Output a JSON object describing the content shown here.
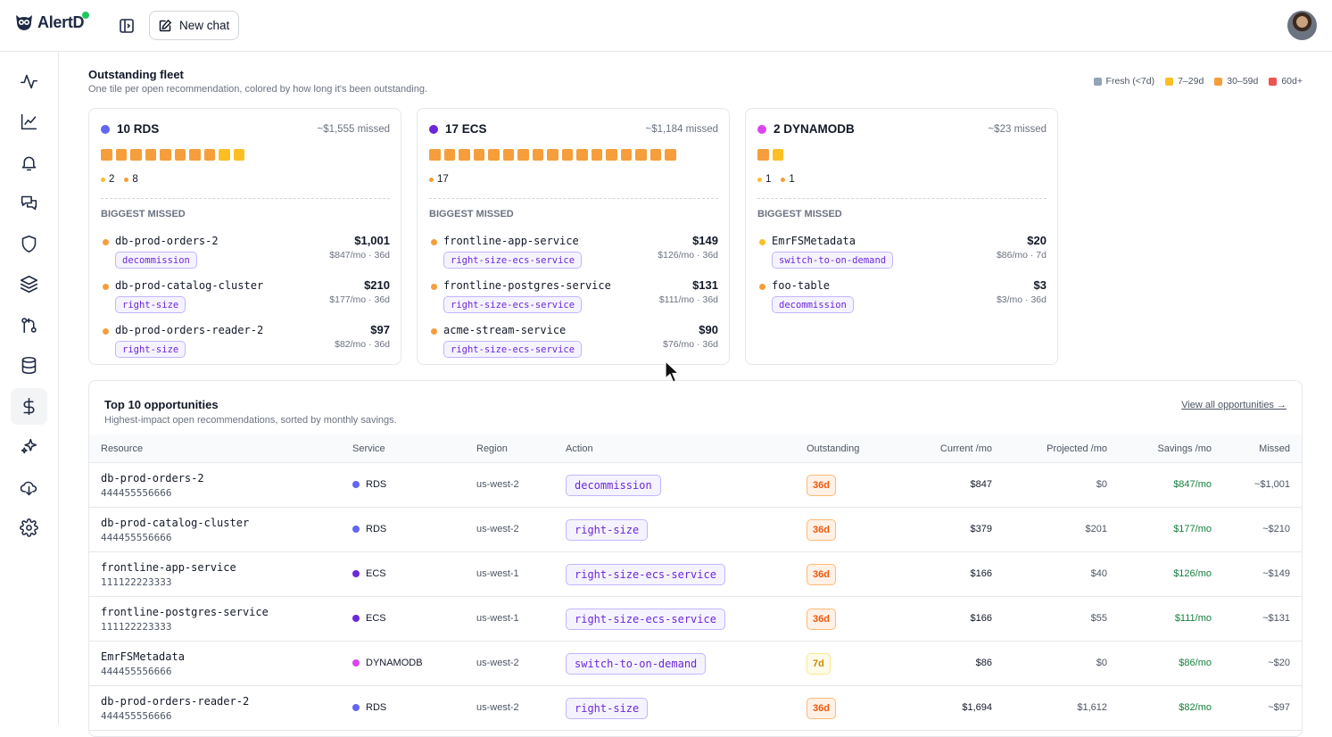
{
  "app": {
    "name": "AlertD",
    "new_chat_label": "New chat"
  },
  "colors": {
    "fresh": "#94a3b8",
    "age_7_29": "#fbbf24",
    "age_30_59": "#f59e3b",
    "age_60_plus": "#ef5350",
    "rds": "#6366f1",
    "ecs": "#6d28d9",
    "dynamodb": "#d946ef"
  },
  "sidebar": {
    "items": [
      {
        "icon": "activity-icon"
      },
      {
        "icon": "chart-icon"
      },
      {
        "icon": "bell-icon"
      },
      {
        "icon": "chat-icon"
      },
      {
        "icon": "shield-icon"
      },
      {
        "icon": "layers-icon"
      },
      {
        "icon": "git-icon"
      },
      {
        "icon": "database-icon"
      },
      {
        "icon": "dollar-icon",
        "active": true
      },
      {
        "icon": "sparkle-icon"
      },
      {
        "icon": "cloud-download-icon"
      },
      {
        "icon": "gear-icon"
      }
    ]
  },
  "fleet": {
    "title": "Outstanding fleet",
    "subtitle": "One tile per open recommendation, colored by how long it's been outstanding.",
    "legend": [
      "Fresh (<7d)",
      "7–29d",
      "30–59d",
      "60d+"
    ],
    "cards": [
      {
        "title": "10 RDS",
        "missed": "~$1,555 missed",
        "tiles": [
          "o",
          "o",
          "o",
          "o",
          "o",
          "o",
          "o",
          "o",
          "y",
          "y"
        ],
        "counts": [
          {
            "color": "y",
            "value": "2"
          },
          {
            "color": "o",
            "value": "8"
          }
        ],
        "biggest_label": "BIGGEST MISSED",
        "items": [
          {
            "name": "db-prod-orders-2",
            "badge": "decommission",
            "amount": "$1,001",
            "sub": "$847/mo · 36d",
            "color": "o"
          },
          {
            "name": "db-prod-catalog-cluster",
            "badge": "right-size",
            "amount": "$210",
            "sub": "$177/mo · 36d",
            "color": "o"
          },
          {
            "name": "db-prod-orders-reader-2",
            "badge": "right-size",
            "amount": "$97",
            "sub": "$82/mo · 36d",
            "color": "o"
          }
        ]
      },
      {
        "title": "17 ECS",
        "missed": "~$1,184 missed",
        "tiles": [
          "o",
          "o",
          "o",
          "o",
          "o",
          "o",
          "o",
          "o",
          "o",
          "o",
          "o",
          "o",
          "o",
          "o",
          "o",
          "o",
          "o"
        ],
        "counts": [
          {
            "color": "o",
            "value": "17"
          }
        ],
        "biggest_label": "BIGGEST MISSED",
        "items": [
          {
            "name": "frontline-app-service",
            "badge": "right-size-ecs-service",
            "amount": "$149",
            "sub": "$126/mo · 36d",
            "color": "o"
          },
          {
            "name": "frontline-postgres-service",
            "badge": "right-size-ecs-service",
            "amount": "$131",
            "sub": "$111/mo · 36d",
            "color": "o"
          },
          {
            "name": "acme-stream-service",
            "badge": "right-size-ecs-service",
            "amount": "$90",
            "sub": "$76/mo · 36d",
            "color": "o"
          }
        ]
      },
      {
        "title": "2 DYNAMODB",
        "missed": "~$23 missed",
        "tiles": [
          "o",
          "y"
        ],
        "counts": [
          {
            "color": "y",
            "value": "1"
          },
          {
            "color": "o",
            "value": "1"
          }
        ],
        "biggest_label": "BIGGEST MISSED",
        "items": [
          {
            "name": "EmrFSMetadata",
            "badge": "switch-to-on-demand",
            "amount": "$20",
            "sub": "$86/mo · 7d",
            "color": "y"
          },
          {
            "name": "foo-table",
            "badge": "decommission",
            "amount": "$3",
            "sub": "$3/mo · 36d",
            "color": "o"
          }
        ]
      }
    ]
  },
  "opportunities": {
    "title": "Top 10 opportunities",
    "subtitle": "Highest-impact open recommendations, sorted by monthly savings.",
    "view_all": "View all opportunities →",
    "columns": [
      "Resource",
      "Service",
      "Region",
      "Action",
      "Outstanding",
      "Current /mo",
      "Projected /mo",
      "Savings /mo",
      "Missed"
    ],
    "rows": [
      {
        "name": "db-prod-orders-2",
        "account": "444455556666",
        "service": "RDS",
        "region": "us-west-2",
        "action": "decommission",
        "outstanding": "36d",
        "current": "$847",
        "projected": "$0",
        "savings": "$847/mo",
        "missed": "~$1,001"
      },
      {
        "name": "db-prod-catalog-cluster",
        "account": "444455556666",
        "service": "RDS",
        "region": "us-west-2",
        "action": "right-size",
        "outstanding": "36d",
        "current": "$379",
        "projected": "$201",
        "savings": "$177/mo",
        "missed": "~$210"
      },
      {
        "name": "frontline-app-service",
        "account": "111122223333",
        "service": "ECS",
        "region": "us-west-1",
        "action": "right-size-ecs-service",
        "outstanding": "36d",
        "current": "$166",
        "projected": "$40",
        "savings": "$126/mo",
        "missed": "~$149"
      },
      {
        "name": "frontline-postgres-service",
        "account": "111122223333",
        "service": "ECS",
        "region": "us-west-1",
        "action": "right-size-ecs-service",
        "outstanding": "36d",
        "current": "$166",
        "projected": "$55",
        "savings": "$111/mo",
        "missed": "~$131"
      },
      {
        "name": "EmrFSMetadata",
        "account": "444455556666",
        "service": "DYNAMODB",
        "region": "us-west-2",
        "action": "switch-to-on-demand",
        "outstanding": "7d",
        "current": "$86",
        "projected": "$0",
        "savings": "$86/mo",
        "missed": "~$20"
      },
      {
        "name": "db-prod-orders-reader-2",
        "account": "444455556666",
        "service": "RDS",
        "region": "us-west-2",
        "action": "right-size",
        "outstanding": "36d",
        "current": "$1,694",
        "projected": "$1,612",
        "savings": "$82/mo",
        "missed": "~$97"
      }
    ]
  }
}
